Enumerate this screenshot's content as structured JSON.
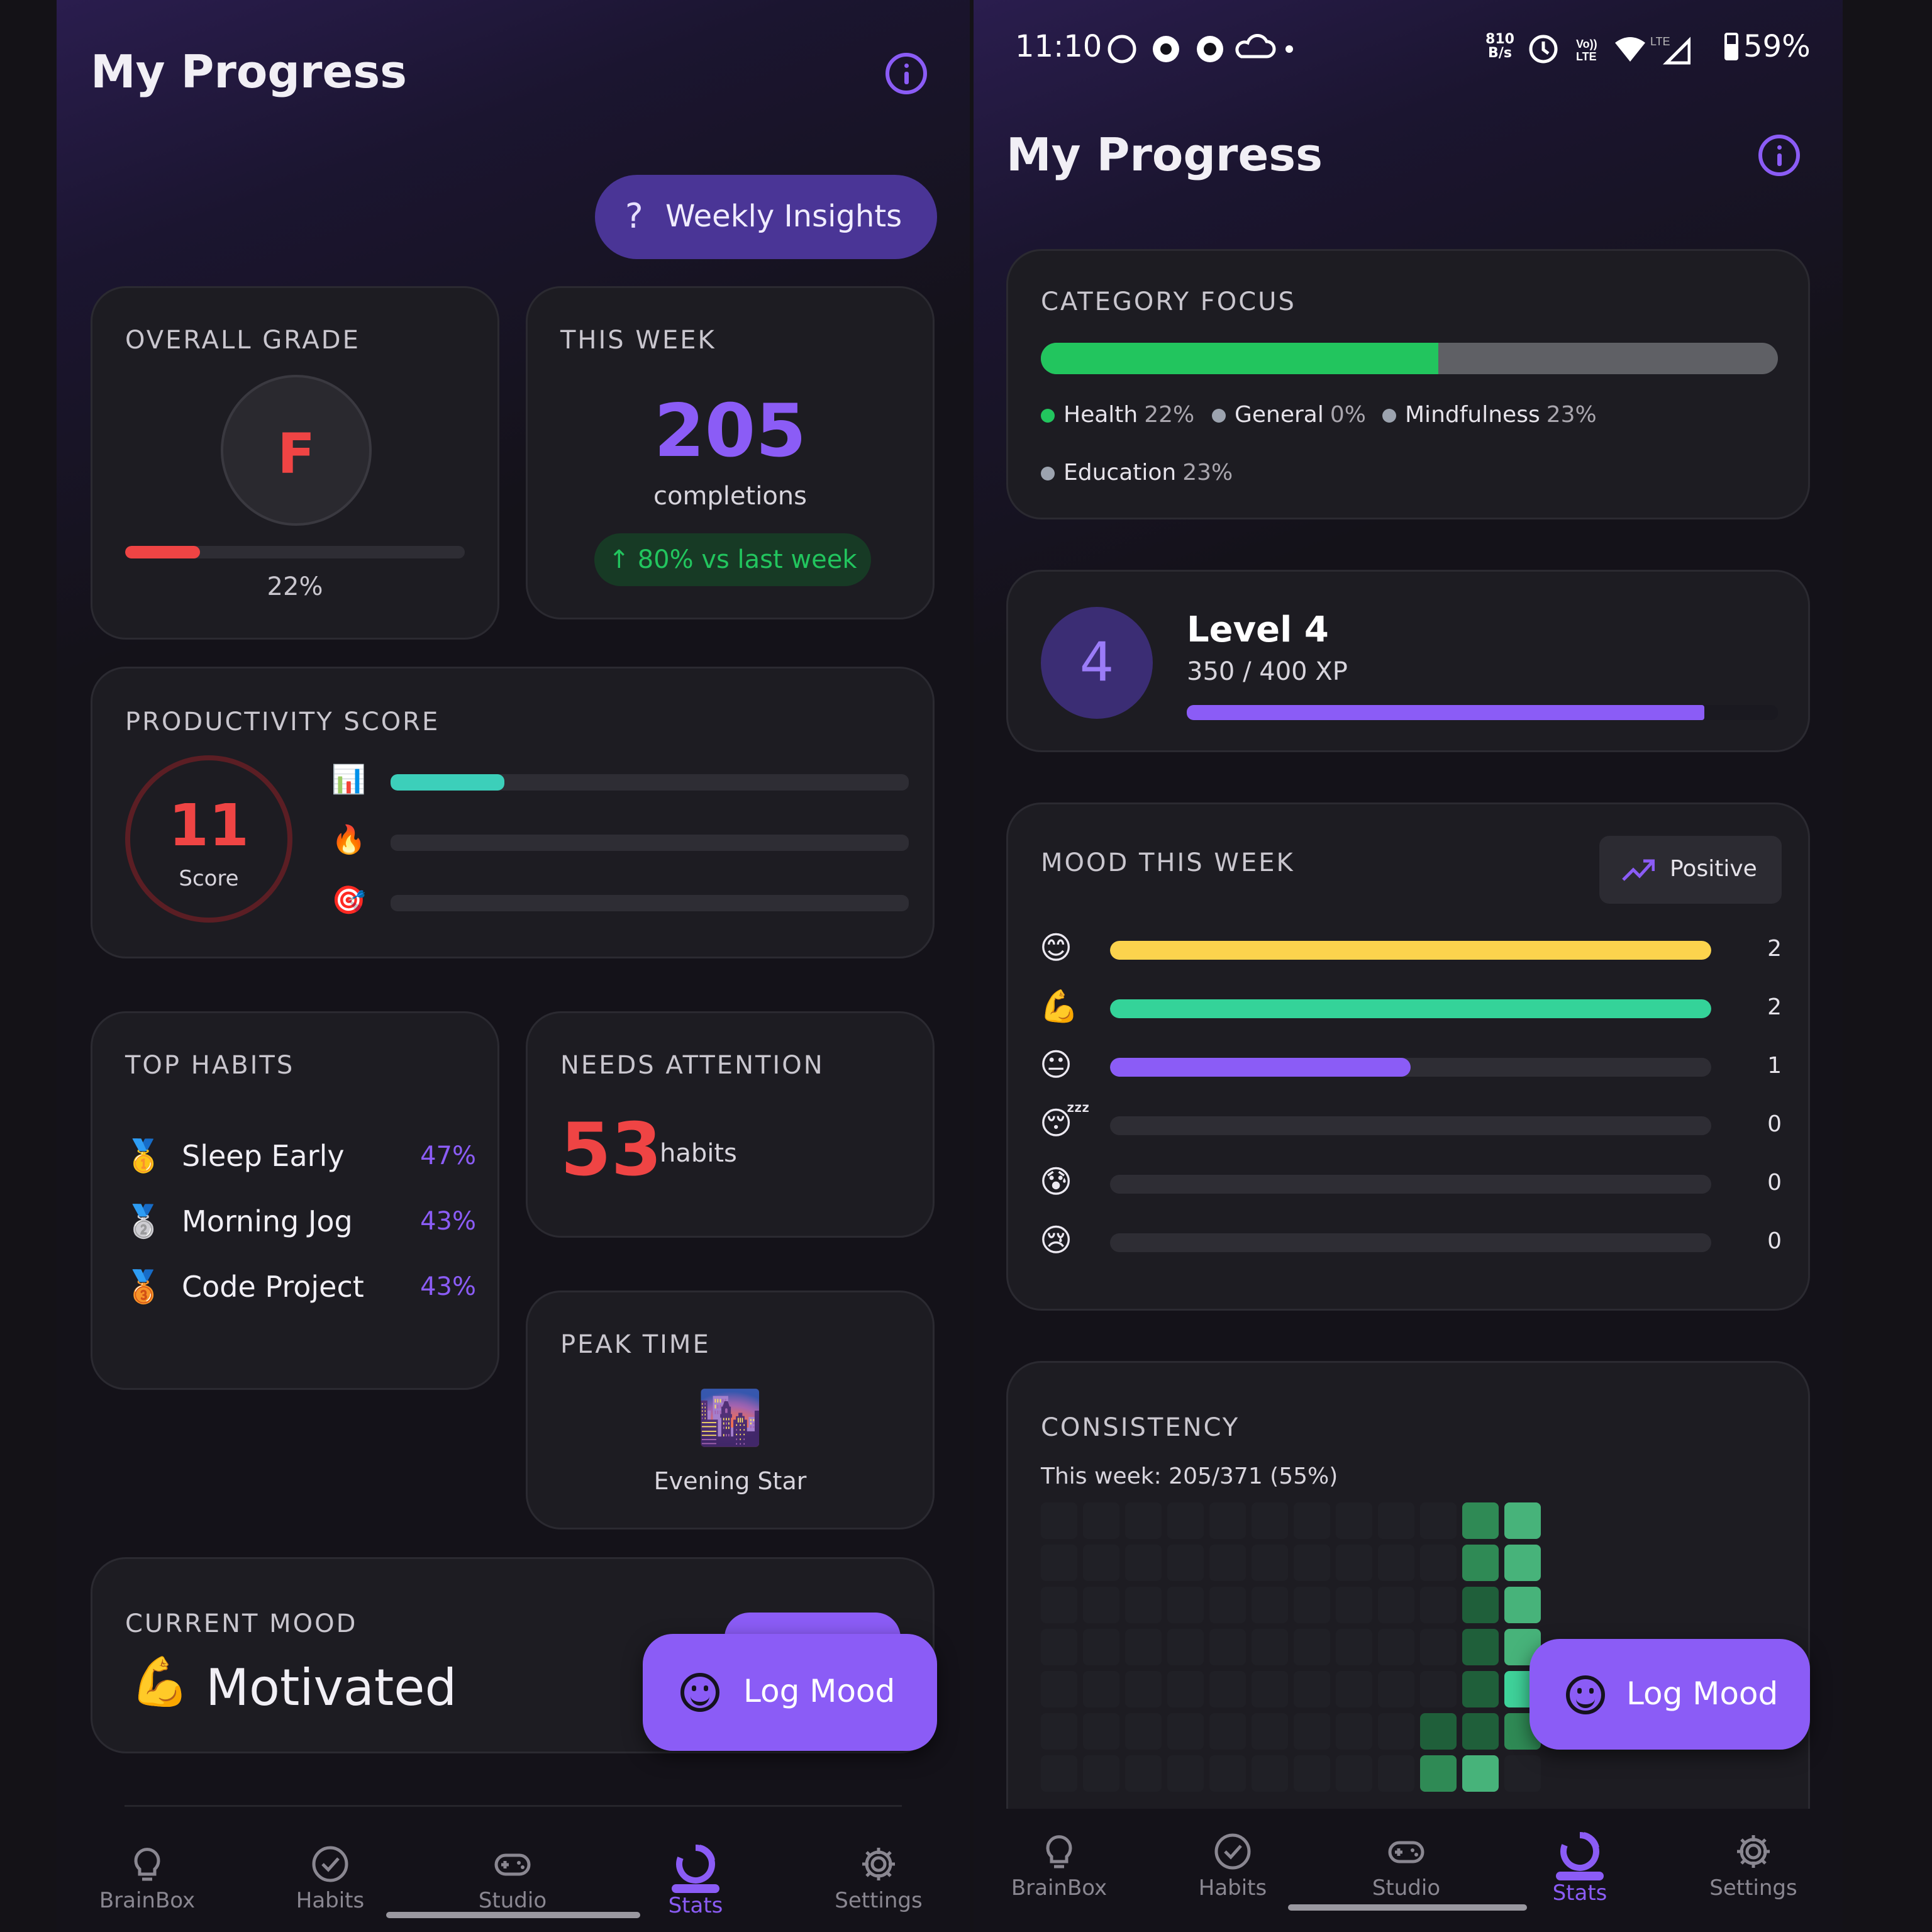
{
  "left": {
    "title": "My Progress",
    "weekly_insights": {
      "icon": "?",
      "label": "Weekly Insights"
    },
    "overall_grade": {
      "title": "OVERALL GRADE",
      "grade": "F",
      "percent_label": "22%",
      "progress": 0.22
    },
    "this_week": {
      "title": "THIS WEEK",
      "count": "205",
      "unit": "completions",
      "delta": "↑ 80% vs last week"
    },
    "productivity": {
      "title": "PRODUCTIVITY SCORE",
      "score": "11",
      "score_label": "Score",
      "bars": [
        {
          "emoji": "📊",
          "progress": 0.22,
          "color": "#3ccfba"
        },
        {
          "emoji": "🔥",
          "progress": 0.0,
          "color": "#f59e0b"
        },
        {
          "emoji": "🎯",
          "progress": 0.0,
          "color": "#ef4444"
        }
      ]
    },
    "top_habits": {
      "title": "TOP HABITS",
      "items": [
        {
          "medal": "🥇",
          "name": "Sleep Early",
          "pct": "47%"
        },
        {
          "medal": "🥈",
          "name": "Morning Jog",
          "pct": "43%"
        },
        {
          "medal": "🥉",
          "name": "Code Project",
          "pct": "43%"
        }
      ]
    },
    "needs_attention": {
      "title": "NEEDS ATTENTION",
      "count": "53",
      "unit": "habits"
    },
    "peak_time": {
      "title": "PEAK TIME",
      "emoji": "🌆",
      "label": "Evening Star"
    },
    "current_mood": {
      "title": "CURRENT MOOD",
      "emoji": "💪",
      "label": "Motivated"
    },
    "fab_label": "Log Mood"
  },
  "right": {
    "status_bar": {
      "time": "11:10",
      "net_speed": "810 B/s",
      "network": "LTE",
      "battery": "59%"
    },
    "title": "My Progress",
    "category_focus": {
      "title": "CATEGORY FOCUS",
      "categories": [
        {
          "name": "Health",
          "pct": "22%",
          "color": "#22c55e",
          "value": 0.22
        },
        {
          "name": "General",
          "pct": "0%",
          "color": "#9ca3af",
          "value": 0.0
        },
        {
          "name": "Mindfulness",
          "pct": "23%",
          "color": "#9ca3af",
          "value": 0.23
        },
        {
          "name": "Education",
          "pct": "23%",
          "color": "#9ca3af",
          "value": 0.23
        }
      ]
    },
    "level": {
      "number": "4",
      "title": "Level 4",
      "xp": "350 / 400 XP",
      "progress": 0.875
    },
    "mood_week": {
      "title": "MOOD THIS WEEK",
      "trend_label": "Positive",
      "rows": [
        {
          "emoji": "😊",
          "count": "2",
          "value": 2,
          "color": "#fcd34d"
        },
        {
          "emoji": "💪",
          "count": "2",
          "value": 2,
          "color": "#34d399"
        },
        {
          "emoji": "😐",
          "count": "1",
          "value": 1,
          "color": "#8b5cf6"
        },
        {
          "emoji": "😴",
          "count": "0",
          "value": 0,
          "color": "#8b5cf6"
        },
        {
          "emoji": "😰",
          "count": "0",
          "value": 0,
          "color": "#8b5cf6"
        },
        {
          "emoji": "😢",
          "count": "0",
          "value": 0,
          "color": "#8b5cf6"
        }
      ],
      "max": 2
    },
    "consistency": {
      "title": "CONSISTENCY",
      "subtitle": "This week: 205/371 (55%)",
      "heatmap": [
        [
          0,
          0,
          0,
          0,
          0,
          0,
          0,
          0,
          0,
          0,
          2,
          3
        ],
        [
          0,
          0,
          0,
          0,
          0,
          0,
          0,
          0,
          0,
          0,
          2,
          3
        ],
        [
          0,
          0,
          0,
          0,
          0,
          0,
          0,
          0,
          0,
          0,
          1,
          3
        ],
        [
          0,
          0,
          0,
          0,
          0,
          0,
          0,
          0,
          0,
          0,
          1,
          3
        ],
        [
          0,
          0,
          0,
          0,
          0,
          0,
          0,
          0,
          0,
          0,
          1,
          4
        ],
        [
          0,
          0,
          0,
          0,
          0,
          0,
          0,
          0,
          0,
          1,
          1,
          2
        ],
        [
          0,
          0,
          0,
          0,
          0,
          0,
          0,
          0,
          0,
          2,
          3,
          0
        ]
      ],
      "colors": [
        "#202026",
        "#1f5f3a",
        "#2f8a55",
        "#47b37a",
        "#3fd29a"
      ]
    },
    "fab_label": "Log Mood"
  },
  "nav": {
    "items": [
      {
        "label": "BrainBox",
        "icon": "lightbulb-icon"
      },
      {
        "label": "Habits",
        "icon": "check-circle-icon"
      },
      {
        "label": "Studio",
        "icon": "gamepad-icon"
      },
      {
        "label": "Stats",
        "icon": "pie-chart-icon"
      },
      {
        "label": "Settings",
        "icon": "gear-icon"
      }
    ],
    "active": "Stats"
  },
  "colors": {
    "accent": "#8b5cf6",
    "danger": "#ef4444",
    "success": "#22c55e",
    "background": "#141219",
    "card": "#1d1c22"
  }
}
